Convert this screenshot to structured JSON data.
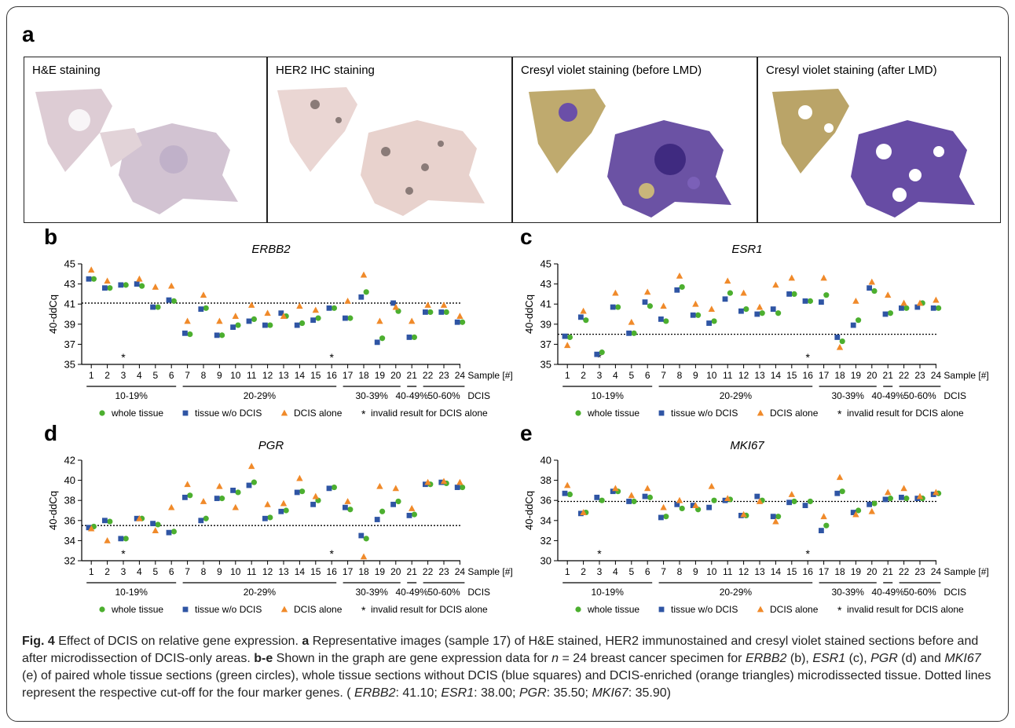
{
  "panel_a": {
    "label": "a",
    "images": [
      {
        "title": "H&E staining"
      },
      {
        "title": "HER2 IHC staining"
      },
      {
        "title": "Cresyl violet staining (before LMD)"
      },
      {
        "title": "Cresyl violet staining (after LMD)"
      }
    ]
  },
  "colors": {
    "whole": "#4caf2f",
    "wo": "#2f55a4",
    "dcis": "#f08a2a"
  },
  "chart_data": [
    {
      "panel": "b",
      "type": "scatter",
      "title": "ERBB2",
      "ylabel": "40-ddCq",
      "ylim": [
        35,
        45
      ],
      "yticks": [
        35,
        37,
        39,
        41,
        43,
        45
      ],
      "categories": [
        "1",
        "2",
        "3",
        "4",
        "5",
        "6",
        "7",
        "8",
        "9",
        "10",
        "11",
        "12",
        "13",
        "14",
        "15",
        "16",
        "17",
        "18",
        "19",
        "20",
        "21",
        "22",
        "23",
        "24"
      ],
      "xlabel": "Sample [#]",
      "cutoff": 41.1,
      "groups": [
        {
          "label": "10-19%",
          "from": 1,
          "to": 6
        },
        {
          "label": "20-29%",
          "from": 7,
          "to": 16
        },
        {
          "label": "30-39%",
          "from": 17,
          "to": 20
        },
        {
          "label": "40-49%",
          "from": 21,
          "to": 21
        },
        {
          "label": "50-60%",
          "from": 22,
          "to": 24
        }
      ],
      "group_suffix": "DCIS",
      "invalid_samples": [
        3,
        16
      ],
      "series": [
        {
          "name": "whole tissue",
          "marker": "circle",
          "values": [
            43.5,
            42.6,
            42.9,
            42.8,
            40.7,
            41.3,
            38.0,
            40.6,
            37.9,
            38.9,
            39.5,
            38.9,
            39.8,
            39.1,
            39.6,
            40.6,
            39.6,
            42.2,
            37.6,
            40.3,
            37.7,
            40.2,
            40.2,
            39.2
          ]
        },
        {
          "name": "tissue w/o DCIS",
          "marker": "square",
          "values": [
            43.5,
            42.6,
            42.9,
            43.0,
            40.7,
            41.4,
            38.1,
            40.5,
            37.9,
            38.7,
            39.3,
            38.9,
            40.1,
            38.9,
            39.4,
            40.6,
            39.6,
            41.7,
            37.2,
            41.1,
            37.7,
            40.2,
            40.2,
            39.2
          ]
        },
        {
          "name": "DCIS alone",
          "marker": "triangle",
          "values": [
            44.4,
            43.3,
            null,
            43.5,
            42.7,
            42.8,
            39.3,
            41.9,
            39.3,
            39.8,
            40.9,
            40.1,
            39.8,
            40.8,
            40.4,
            null,
            41.3,
            43.9,
            39.3,
            40.7,
            39.3,
            40.9,
            40.9,
            39.8
          ]
        }
      ]
    },
    {
      "panel": "c",
      "type": "scatter",
      "title": "ESR1",
      "ylabel": "40-ddCq",
      "ylim": [
        35,
        45
      ],
      "yticks": [
        35,
        37,
        39,
        41,
        43,
        45
      ],
      "categories": [
        "1",
        "2",
        "3",
        "4",
        "5",
        "6",
        "7",
        "8",
        "9",
        "10",
        "11",
        "12",
        "13",
        "14",
        "15",
        "16",
        "17",
        "18",
        "19",
        "20",
        "21",
        "22",
        "23",
        "24"
      ],
      "xlabel": "Sample [#]",
      "cutoff": 38.0,
      "groups": [
        {
          "label": "10-19%",
          "from": 1,
          "to": 6
        },
        {
          "label": "20-29%",
          "from": 7,
          "to": 16
        },
        {
          "label": "30-39%",
          "from": 17,
          "to": 20
        },
        {
          "label": "40-49%",
          "from": 21,
          "to": 21
        },
        {
          "label": "50-60%",
          "from": 22,
          "to": 24
        }
      ],
      "group_suffix": "DCIS",
      "invalid_samples": [
        3,
        16
      ],
      "series": [
        {
          "name": "whole tissue",
          "marker": "circle",
          "values": [
            37.7,
            39.4,
            36.2,
            40.7,
            38.1,
            40.8,
            39.3,
            42.7,
            39.9,
            39.3,
            42.1,
            40.5,
            40.1,
            40.1,
            42.0,
            41.3,
            41.9,
            37.3,
            39.4,
            42.3,
            40.1,
            40.6,
            41.1,
            40.6
          ]
        },
        {
          "name": "tissue w/o DCIS",
          "marker": "square",
          "values": [
            37.8,
            39.7,
            36.0,
            40.7,
            38.1,
            41.2,
            39.5,
            42.4,
            39.9,
            39.1,
            41.5,
            40.3,
            40.0,
            40.5,
            42.0,
            41.3,
            41.2,
            37.7,
            38.9,
            42.6,
            40.0,
            40.6,
            40.7,
            40.6
          ]
        },
        {
          "name": "DCIS alone",
          "marker": "triangle",
          "values": [
            36.9,
            40.3,
            null,
            42.1,
            39.2,
            42.2,
            40.8,
            43.8,
            41.0,
            40.5,
            43.3,
            42.1,
            40.7,
            42.9,
            43.6,
            null,
            43.6,
            36.7,
            41.3,
            43.2,
            41.9,
            41.1,
            41.1,
            41.4
          ]
        }
      ]
    },
    {
      "panel": "d",
      "type": "scatter",
      "title": "PGR",
      "ylabel": "40-ddCq",
      "ylim": [
        32,
        42
      ],
      "yticks": [
        32,
        34,
        36,
        38,
        40,
        42
      ],
      "categories": [
        "1",
        "2",
        "3",
        "4",
        "5",
        "6",
        "7",
        "8",
        "9",
        "10",
        "11",
        "12",
        "13",
        "14",
        "15",
        "16",
        "17",
        "18",
        "19",
        "20",
        "21",
        "22",
        "23",
        "24"
      ],
      "xlabel": "Sample [#]",
      "cutoff": 35.5,
      "groups": [
        {
          "label": "10-19%",
          "from": 1,
          "to": 6
        },
        {
          "label": "20-29%",
          "from": 7,
          "to": 16
        },
        {
          "label": "30-39%",
          "from": 17,
          "to": 20
        },
        {
          "label": "40-49%",
          "from": 21,
          "to": 21
        },
        {
          "label": "50-60%",
          "from": 22,
          "to": 24
        }
      ],
      "group_suffix": "DCIS",
      "invalid_samples": [
        3,
        16
      ],
      "series": [
        {
          "name": "whole tissue",
          "marker": "circle",
          "values": [
            35.4,
            35.9,
            34.2,
            36.2,
            35.6,
            34.9,
            38.5,
            36.2,
            38.2,
            38.8,
            39.8,
            36.3,
            37.0,
            38.9,
            38.0,
            39.3,
            37.1,
            34.2,
            36.9,
            37.9,
            36.6,
            39.6,
            39.7,
            39.3
          ]
        },
        {
          "name": "tissue w/o DCIS",
          "marker": "square",
          "values": [
            35.3,
            36.0,
            34.2,
            36.2,
            35.7,
            34.8,
            38.3,
            36.0,
            38.2,
            39.0,
            39.5,
            36.2,
            36.9,
            38.8,
            37.6,
            39.2,
            37.3,
            34.5,
            36.1,
            37.6,
            36.5,
            39.6,
            39.8,
            39.3
          ]
        },
        {
          "name": "DCIS alone",
          "marker": "triangle",
          "values": [
            35.2,
            34.0,
            null,
            36.2,
            35.0,
            37.3,
            39.6,
            37.9,
            39.4,
            37.3,
            41.4,
            37.6,
            37.7,
            40.2,
            38.4,
            null,
            37.9,
            32.4,
            39.4,
            39.2,
            37.2,
            39.8,
            39.9,
            39.8
          ]
        }
      ]
    },
    {
      "panel": "e",
      "type": "scatter",
      "title": "MKI67",
      "ylabel": "40-ddCq",
      "ylim": [
        30,
        40
      ],
      "yticks": [
        30,
        32,
        34,
        36,
        38,
        40
      ],
      "categories": [
        "1",
        "2",
        "3",
        "4",
        "5",
        "6",
        "7",
        "8",
        "9",
        "10",
        "11",
        "12",
        "13",
        "14",
        "15",
        "16",
        "17",
        "18",
        "19",
        "20",
        "21",
        "22",
        "23",
        "24"
      ],
      "xlabel": "Sample [#]",
      "cutoff": 35.9,
      "groups": [
        {
          "label": "10-19%",
          "from": 1,
          "to": 6
        },
        {
          "label": "20-29%",
          "from": 7,
          "to": 16
        },
        {
          "label": "30-39%",
          "from": 17,
          "to": 20
        },
        {
          "label": "40-49%",
          "from": 21,
          "to": 21
        },
        {
          "label": "50-60%",
          "from": 22,
          "to": 24
        }
      ],
      "group_suffix": "DCIS",
      "invalid_samples": [
        3,
        16
      ],
      "series": [
        {
          "name": "whole tissue",
          "marker": "circle",
          "values": [
            36.6,
            34.8,
            36.0,
            36.9,
            35.9,
            36.3,
            34.4,
            35.2,
            35.1,
            36.0,
            36.1,
            34.5,
            36.0,
            34.4,
            35.9,
            35.9,
            33.5,
            36.9,
            35.0,
            35.7,
            36.2,
            36.2,
            36.2,
            36.7
          ]
        },
        {
          "name": "tissue w/o DCIS",
          "marker": "square",
          "values": [
            36.7,
            34.7,
            36.3,
            36.9,
            35.9,
            36.4,
            34.3,
            35.6,
            35.5,
            35.3,
            36.0,
            34.5,
            36.4,
            34.4,
            35.8,
            35.5,
            33.0,
            36.7,
            34.8,
            35.6,
            36.1,
            36.3,
            36.2,
            36.6
          ]
        },
        {
          "name": "DCIS alone",
          "marker": "triangle",
          "values": [
            37.5,
            34.8,
            null,
            37.2,
            36.5,
            37.2,
            35.3,
            36.0,
            35.5,
            37.4,
            36.2,
            34.6,
            35.9,
            33.9,
            36.6,
            null,
            34.4,
            38.3,
            34.6,
            34.9,
            36.8,
            37.2,
            36.4,
            36.8
          ]
        }
      ]
    }
  ],
  "legend": {
    "whole": "whole tissue",
    "wo": "tissue w/o DCIS",
    "dcis": "DCIS alone",
    "invalid_symbol": "*",
    "invalid": "invalid result for DCIS alone"
  },
  "caption": {
    "fig_label": "Fig. 4",
    "title": " Effect of DCIS on relative gene expression. ",
    "a_label": "a",
    "a_text": " Representative images (sample 17) of H&E stained, HER2 immunostained and cresyl violet stained sections before and after microdissection of DCIS-only areas. ",
    "be_label": "b-e",
    "be_text1": " Shown in the graph are gene expression data for ",
    "n_symbol": "n",
    "be_text2": " = 24 breast cancer specimen for ",
    "genes": [
      "ERBB2",
      "ESR1",
      "PGR",
      "MKI67"
    ],
    "gene_refs": [
      " (b), ",
      " (c), ",
      " (d) and "
    ],
    "be_text3": " (e) of paired whole tissue sections (green circles), whole tissue sections without DCIS (blue squares) and DCIS-enriched (orange triangles) microdissected tissue. Dotted lines represent the respective cut-off for the four marker genes. (",
    "cutoffs": [
      ": 41.10; ",
      ": 38.00; ",
      ": 35.50; ",
      ": 35.90)"
    ]
  }
}
